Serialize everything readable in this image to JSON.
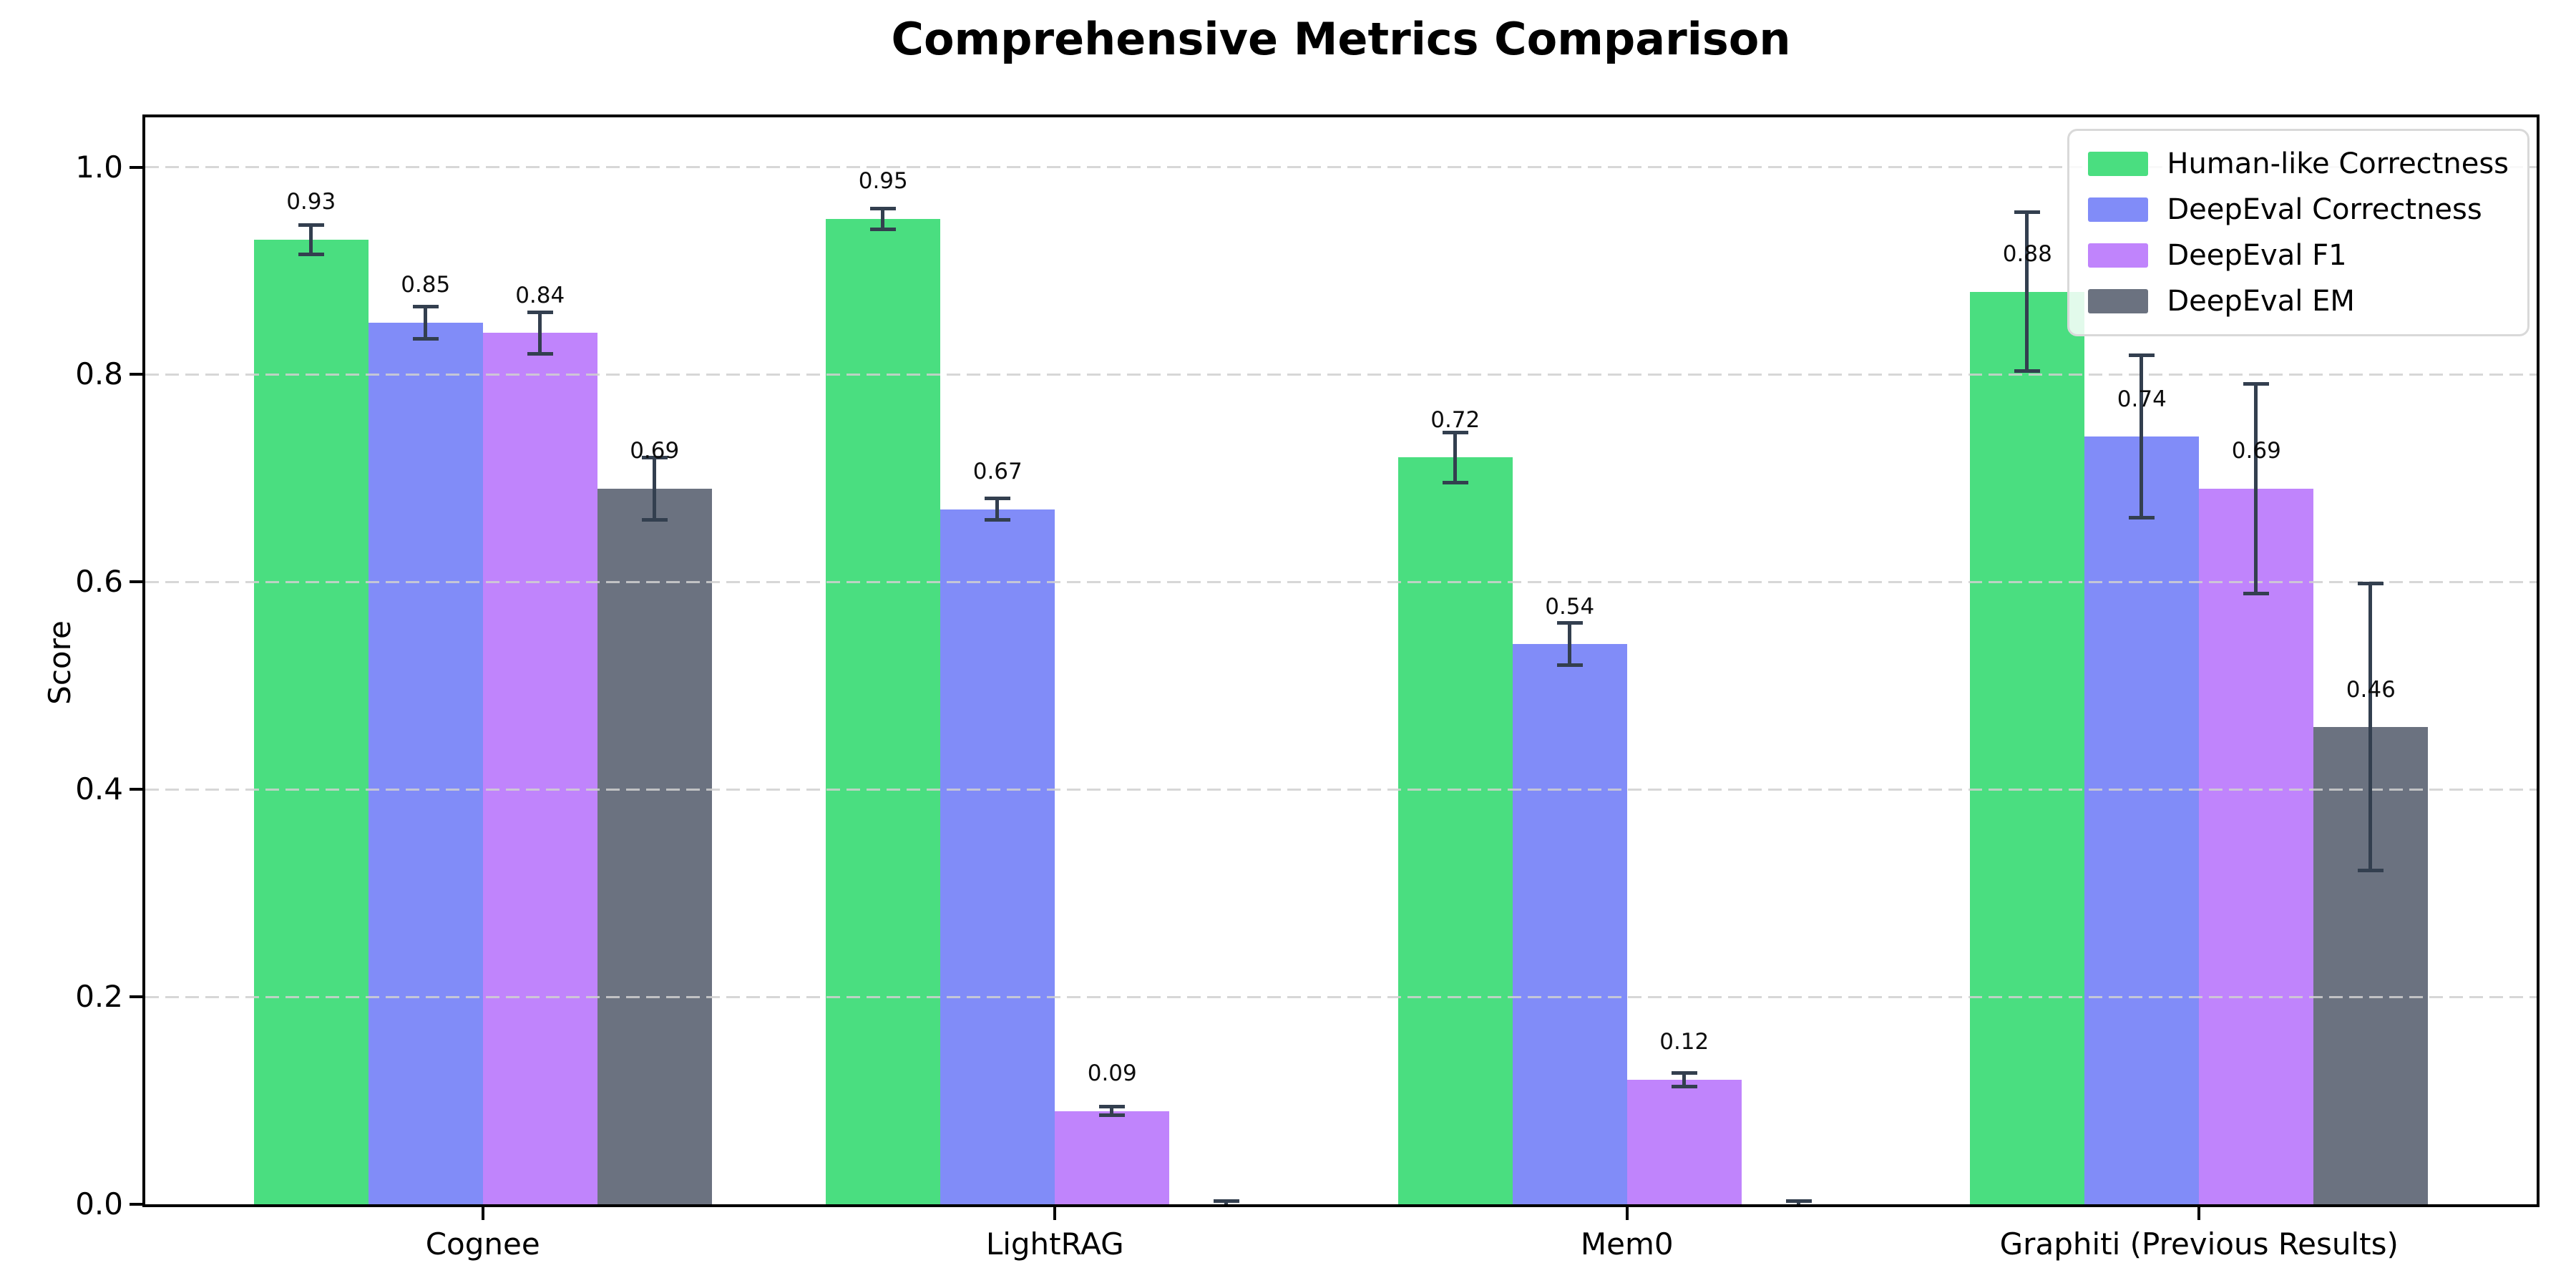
{
  "figure": {
    "background": "#ffffff"
  },
  "chart_data": {
    "type": "bar",
    "title": "Comprehensive Metrics Comparison",
    "ylabel": "Score",
    "xlabel": "",
    "categories": [
      "Cognee",
      "LightRAG",
      "Mem0",
      "Graphiti (Previous Results)"
    ],
    "series": [
      {
        "name": "Human-like Correctness",
        "color": "#4ade80",
        "values": [
          0.93,
          0.95,
          0.72,
          0.88
        ],
        "errors": [
          0.016,
          0.012,
          0.026,
          0.078
        ],
        "labels": [
          "0.93",
          "0.95",
          "0.72",
          "0.88"
        ]
      },
      {
        "name": "DeepEval Correctness",
        "color": "#818cf8",
        "values": [
          0.85,
          0.67,
          0.54,
          0.74
        ],
        "errors": [
          0.017,
          0.012,
          0.022,
          0.08
        ],
        "labels": [
          "0.85",
          "0.67",
          "0.54",
          "0.74"
        ]
      },
      {
        "name": "DeepEval F1",
        "color": "#c084fc",
        "values": [
          0.84,
          0.09,
          0.12,
          0.69
        ],
        "errors": [
          0.022,
          0.006,
          0.008,
          0.103
        ],
        "labels": [
          "0.84",
          "0.09",
          "0.12",
          "0.69"
        ]
      },
      {
        "name": "DeepEval EM",
        "color": "#6b7280",
        "values": [
          0.69,
          0.0,
          0.0,
          0.46
        ],
        "errors": [
          0.032,
          0.005,
          0.005,
          0.14
        ],
        "labels": [
          "0.69",
          "",
          "",
          "0.46"
        ]
      }
    ],
    "yticks": [
      0.0,
      0.2,
      0.4,
      0.6,
      0.8,
      1.0
    ],
    "ylim": [
      0.0,
      1.048
    ],
    "grid": {
      "axis": "y",
      "style": "dashed",
      "color": "#d5d5d5",
      "over_bars": true
    },
    "legend": {
      "position": "upper right",
      "entries": [
        "Human-like Correctness",
        "DeepEval Correctness",
        "DeepEval F1",
        "DeepEval EM"
      ]
    },
    "error_bar_color": "#333f4f",
    "axis_color": "#000000"
  }
}
